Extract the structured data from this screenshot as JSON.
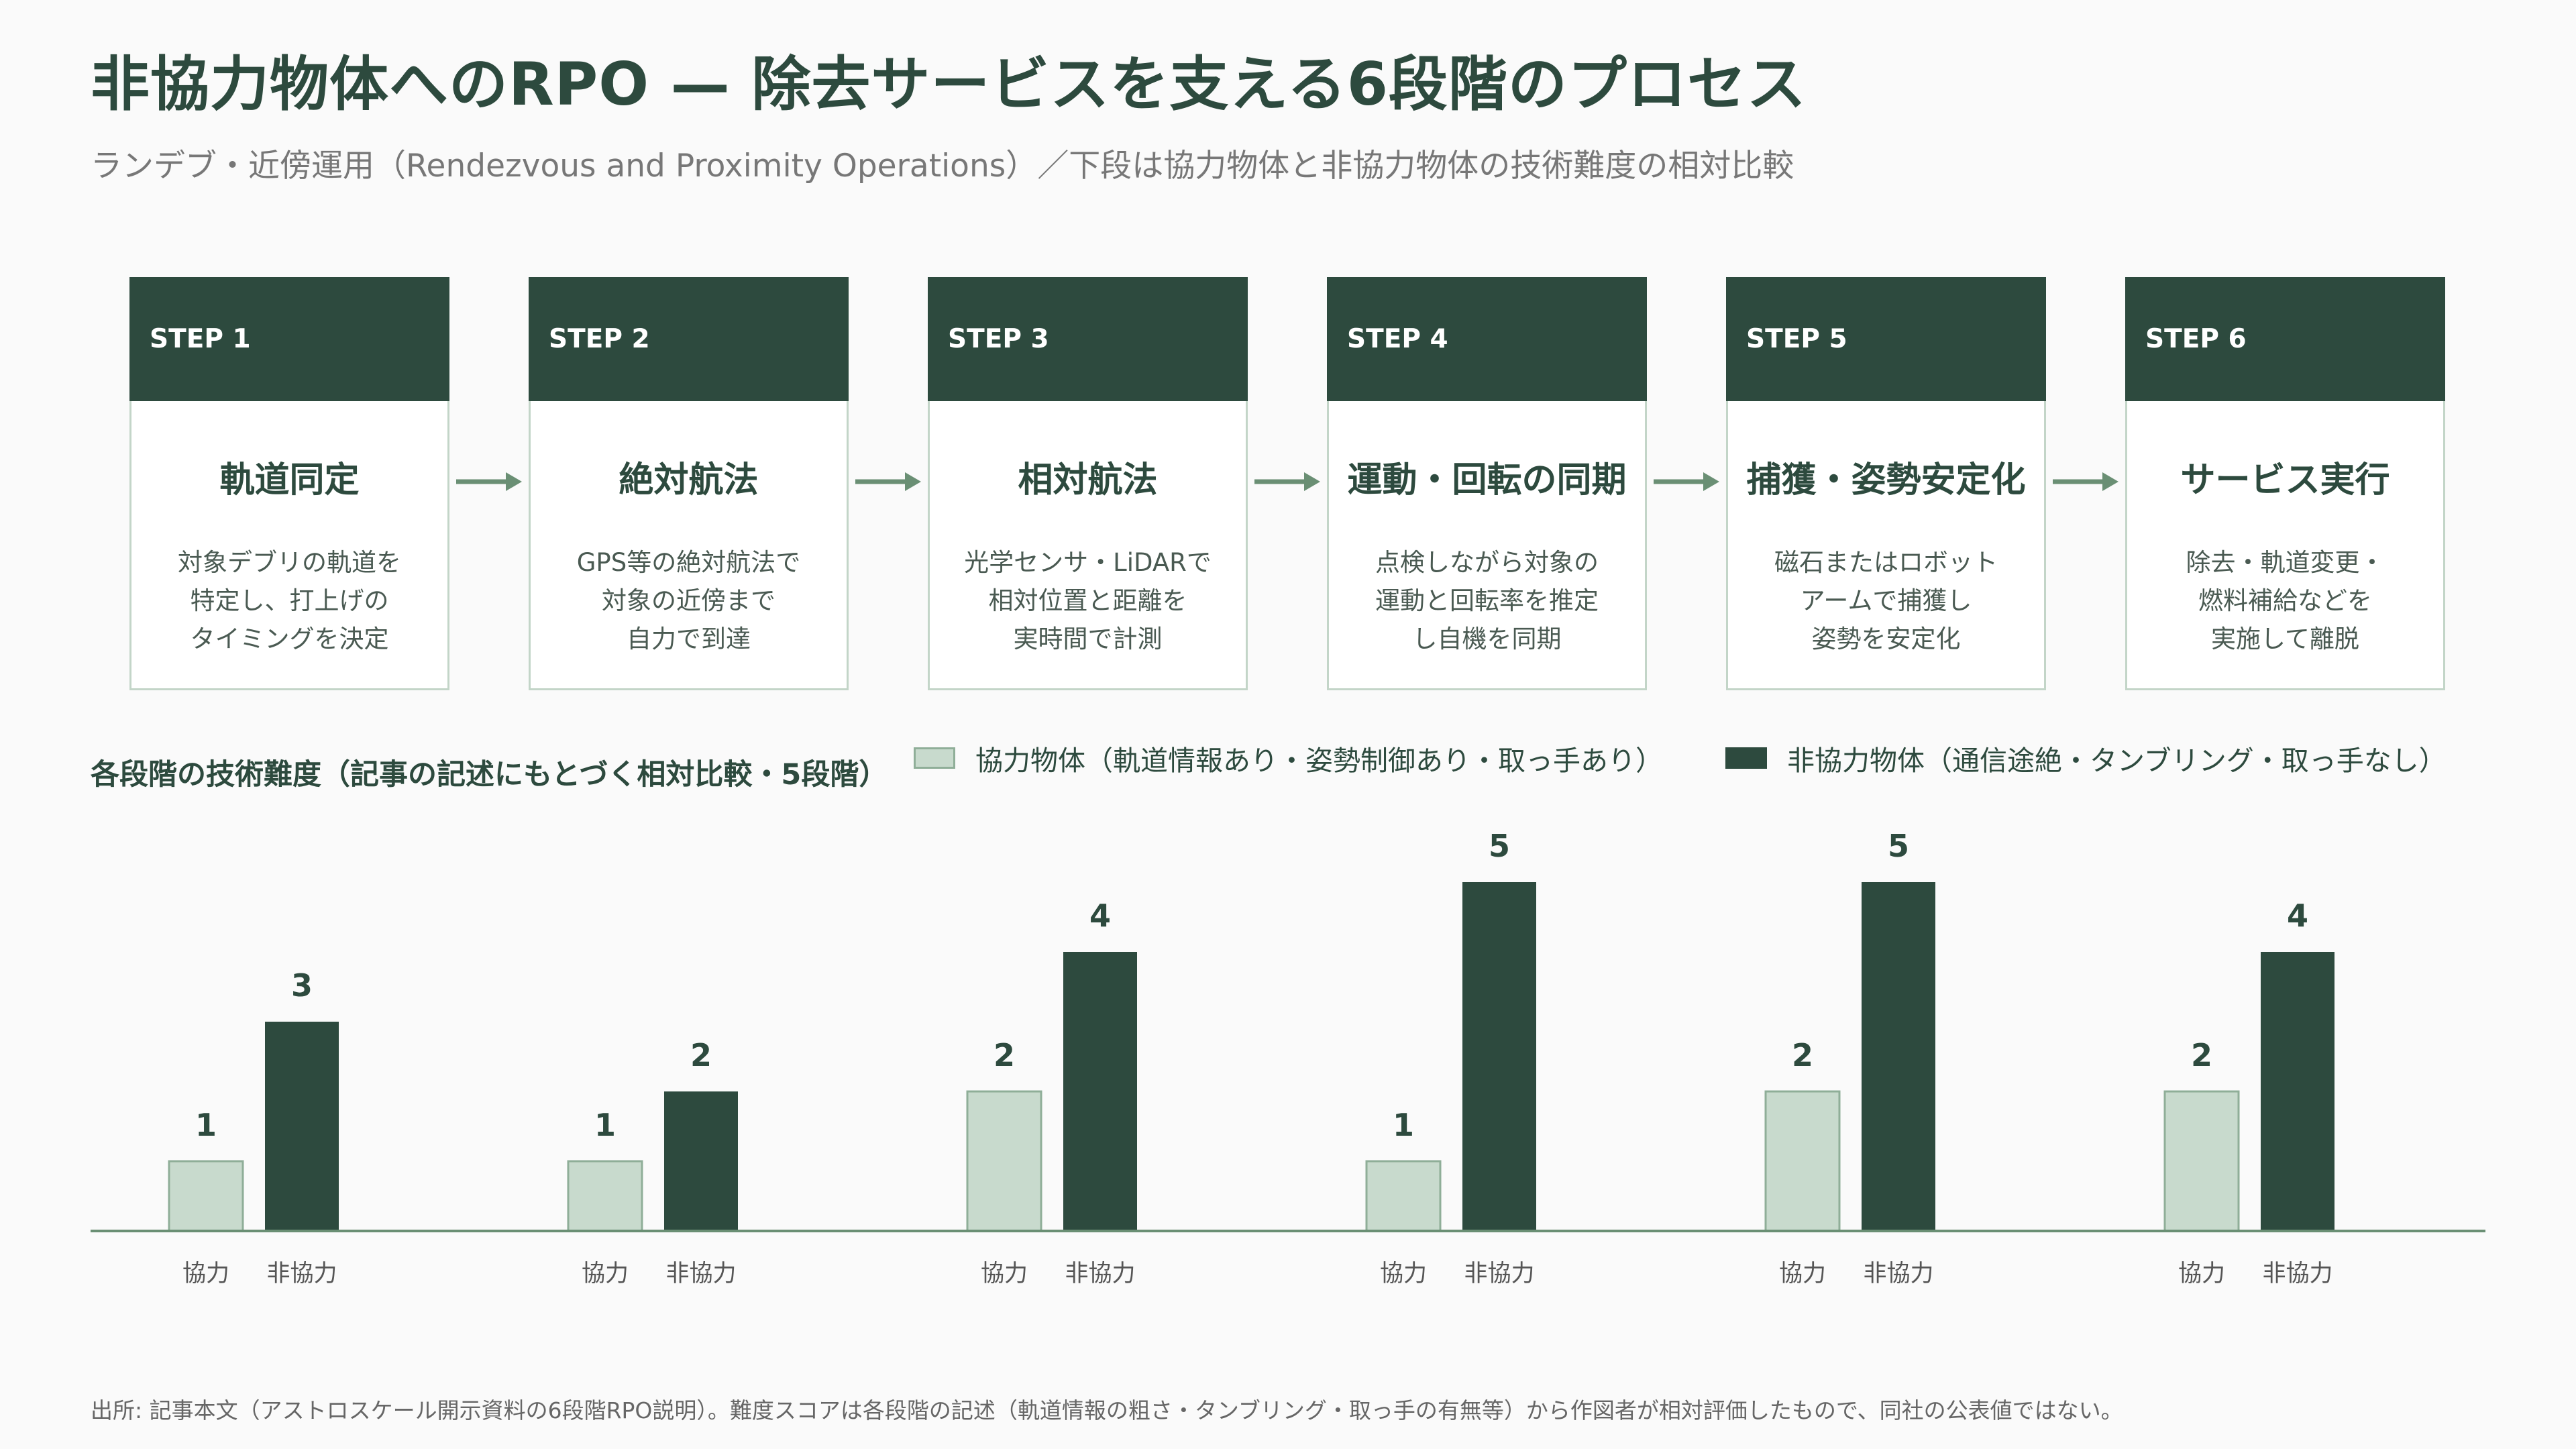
{
  "title": "非協力物体へのRPO — 除去サービスを支える6段階のプロセス",
  "subtitle": "ランデブ・近傍運用（Rendezvous and Proximity Operations）／下段は協力物体と非協力物体の技術難度の相対比較",
  "steps": [
    {
      "label": "STEP 1",
      "title": "軌道同定",
      "desc": "対象デブリの軌道を\n特定し、打上げの\nタイミングを決定"
    },
    {
      "label": "STEP 2",
      "title": "絶対航法",
      "desc": "GPS等の絶対航法で\n対象の近傍まで\n自力で到達"
    },
    {
      "label": "STEP 3",
      "title": "相対航法",
      "desc": "光学センサ・LiDARで\n相対位置と距離を\n実時間で計測"
    },
    {
      "label": "STEP 4",
      "title": "運動・回転の同期",
      "desc": "点検しながら対象の\n運動と回転率を推定\nし自機を同期"
    },
    {
      "label": "STEP 5",
      "title": "捕獲・姿勢安定化",
      "desc": "磁石またはロボット\nアームで捕獲し\n姿勢を安定化"
    },
    {
      "label": "STEP 6",
      "title": "サービス実行",
      "desc": "除去・軌道変更・\n燃料補給などを\n実施して離脱"
    }
  ],
  "chart_heading": "各段階の技術難度（記事の記述にもとづく相対比較・5段階）",
  "legend": {
    "cooperative": "協力物体（軌道情報あり・姿勢制御あり・取っ手あり）",
    "noncooperative": "非協力物体（通信途絶・タンブリング・取っ手なし）"
  },
  "chart_data": {
    "type": "bar",
    "categories": [
      "STEP 1",
      "STEP 2",
      "STEP 3",
      "STEP 4",
      "STEP 5",
      "STEP 6"
    ],
    "bar_labels": [
      "協力",
      "非協力"
    ],
    "series": [
      {
        "name": "協力物体（軌道情報あり・姿勢制御あり・取っ手あり）",
        "values": [
          1,
          1,
          2,
          1,
          2,
          2
        ],
        "color": "#c8dacd"
      },
      {
        "name": "非協力物体（通信途絶・タンブリング・取っ手なし）",
        "values": [
          3,
          2,
          4,
          5,
          5,
          4
        ],
        "color": "#2d4a3e"
      }
    ],
    "ylim": [
      0,
      5
    ],
    "grid": false,
    "legend_position": "top-right"
  },
  "footer": "出所: 記事本文（アストロスケール開示資料の6段階RPO説明）。難度スコアは各段階の記述（軌道情報の粗さ・タンブリング・取っ手の有無等）から作図者が相対評価したもので、同社の公表値ではない。",
  "colors": {
    "dark": "#2d4a3e",
    "light": "#c8dacd",
    "border": "#c3d5c8",
    "arrow": "#6a8f74"
  }
}
